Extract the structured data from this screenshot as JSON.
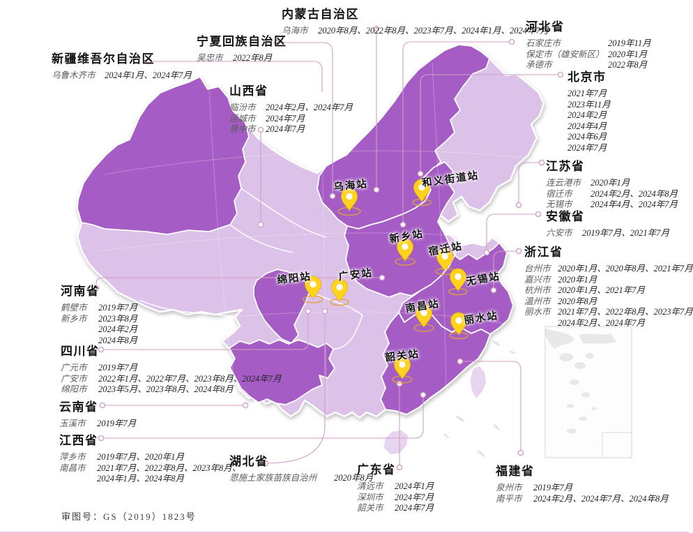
{
  "credit": "审图号：GS（2019）1823号",
  "colors": {
    "province_dark": "#a55cc4",
    "province_light": "#dcc2e8",
    "taiwan_island": "#e7d4ee",
    "island_gray": "#cfcfcf",
    "leader_line": "#d49fc6",
    "pin_yellow": "#ffd21e",
    "pin_ring": "#dfa23c"
  },
  "callouts": [
    {
      "id": "xinjiang",
      "title": "新疆维吾尔自治区",
      "rows": [
        {
          "city": "乌鲁木齐市",
          "dates": [
            "2024年1月、2024年7月"
          ]
        }
      ]
    },
    {
      "id": "ningxia",
      "title": "宁夏回族自治区",
      "rows": [
        {
          "city": "吴忠市",
          "dates": [
            "2022年8月"
          ]
        }
      ]
    },
    {
      "id": "neimenggu",
      "title": "内蒙古自治区",
      "rows": [
        {
          "city": "乌海市",
          "dates": [
            "2020年8月、2022年8月、2023年7月、2024年1月、2024年7月"
          ]
        }
      ]
    },
    {
      "id": "shanxi",
      "title": "山西省",
      "rows": [
        {
          "city": "临汾市",
          "dates": [
            "2024年2月、2024年7月"
          ]
        },
        {
          "city": "运城市",
          "dates": [
            "2024年7月"
          ]
        },
        {
          "city": "晋中市",
          "dates": [
            "2024年7月"
          ]
        }
      ]
    },
    {
      "id": "hebei",
      "title": "河北省",
      "rows": [
        {
          "city": "石家庄市",
          "dates": [
            "2019年11月"
          ]
        },
        {
          "city": "保定市（雄安新区）",
          "dates": [
            "2020年1月"
          ]
        },
        {
          "city": "承德市",
          "dates": [
            "2022年8月"
          ]
        }
      ]
    },
    {
      "id": "beijing",
      "title": "北京市",
      "rows": [
        {
          "city": "",
          "dates": [
            "2021年7月",
            "2023年11月",
            "2024年2月",
            "2024年4月",
            "2024年6月",
            "2024年7月"
          ]
        }
      ]
    },
    {
      "id": "jiangsu",
      "title": "江苏省",
      "rows": [
        {
          "city": "连云港市",
          "dates": [
            "2020年1月"
          ]
        },
        {
          "city": "宿迁市",
          "dates": [
            "2024年2月、2024年8月"
          ]
        },
        {
          "city": "无锡市",
          "dates": [
            "2024年4月、2024年7月"
          ]
        }
      ]
    },
    {
      "id": "anhui",
      "title": "安徽省",
      "rows": [
        {
          "city": "六安市",
          "dates": [
            "2019年7月、2021年7月"
          ]
        }
      ]
    },
    {
      "id": "zhejiang",
      "title": "浙江省",
      "rows": [
        {
          "city": "台州市",
          "dates": [
            "2020年1月、2020年8月、2021年7月"
          ]
        },
        {
          "city": "嘉兴市",
          "dates": [
            "2020年1月"
          ]
        },
        {
          "city": "杭州市",
          "dates": [
            "2020年1月、2021年7月"
          ]
        },
        {
          "city": "温州市",
          "dates": [
            "2020年8月"
          ]
        },
        {
          "city": "丽水市",
          "dates": [
            "2021年7月、2022年8月、2023年7月",
            "2024年2月、2024年7月"
          ]
        }
      ]
    },
    {
      "id": "henan",
      "title": "河南省",
      "rows": [
        {
          "city": "鹤壁市",
          "dates": [
            "2019年7月"
          ]
        },
        {
          "city": "新乡市",
          "dates": [
            "2023年8月",
            "2024年2月",
            "2024年8月"
          ]
        }
      ]
    },
    {
      "id": "sichuan",
      "title": "四川省",
      "rows": [
        {
          "city": "广元市",
          "dates": [
            "2019年7月"
          ]
        },
        {
          "city": "广安市",
          "dates": [
            "2022年1月、2022年7月、2023年8月、2024年7月"
          ]
        },
        {
          "city": "绵阳市",
          "dates": [
            "2023年5月、2023年8月、2024年8月"
          ]
        }
      ]
    },
    {
      "id": "yunnan",
      "title": "云南省",
      "rows": [
        {
          "city": "玉溪市",
          "dates": [
            "2019年7月"
          ]
        }
      ]
    },
    {
      "id": "jiangxi",
      "title": "江西省",
      "rows": [
        {
          "city": "萍乡市",
          "dates": [
            "2019年7月、2020年1月"
          ]
        },
        {
          "city": "南昌市",
          "dates": [
            "2021年7月、2022年8月、2023年8月、",
            "2024年1月、2024年8月"
          ]
        }
      ]
    },
    {
      "id": "hubei",
      "title": "湖北省",
      "rows": [
        {
          "city": "恩施土家族苗族自治州",
          "dates": [
            "2020年8月"
          ]
        }
      ]
    },
    {
      "id": "guangdong",
      "title": "广东省",
      "rows": [
        {
          "city": "清远市",
          "dates": [
            "2024年1月"
          ]
        },
        {
          "city": "深圳市",
          "dates": [
            "2024年7月"
          ]
        },
        {
          "city": "韶关市",
          "dates": [
            "2024年7月"
          ]
        }
      ]
    },
    {
      "id": "fujian",
      "title": "福建省",
      "rows": [
        {
          "city": "泉州市",
          "dates": [
            "2019年7月"
          ]
        },
        {
          "city": "南平市",
          "dates": [
            "2024年2月、2024年7月、2024年8月"
          ]
        }
      ]
    }
  ],
  "stations": [
    {
      "id": "wuhai",
      "label": "乌海站"
    },
    {
      "id": "heyijiedao",
      "label": "和义街道站"
    },
    {
      "id": "xinxiang",
      "label": "新乡站"
    },
    {
      "id": "suqian",
      "label": "宿迁站"
    },
    {
      "id": "wuxi",
      "label": "无锡站"
    },
    {
      "id": "mianyang",
      "label": "绵阳站"
    },
    {
      "id": "guangan",
      "label": "广安站"
    },
    {
      "id": "nanchang",
      "label": "南昌站"
    },
    {
      "id": "lishui",
      "label": "丽水站"
    },
    {
      "id": "shaoguan",
      "label": "韶关站"
    }
  ]
}
